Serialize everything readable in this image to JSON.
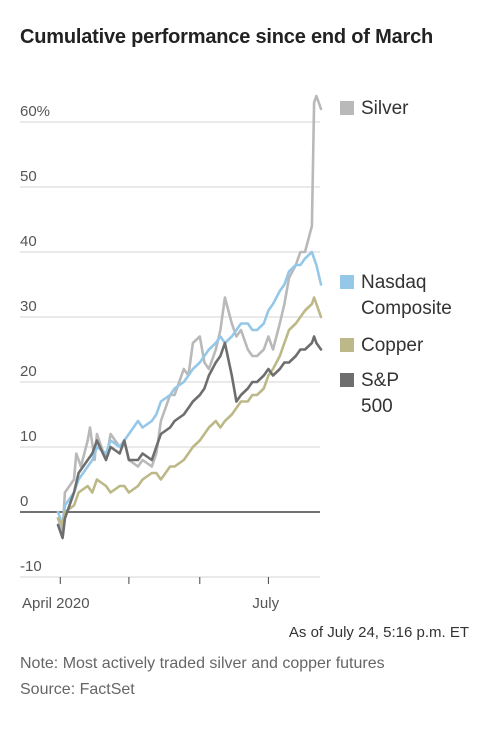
{
  "title": "Cumulative performance since end of March",
  "as_of": "As of July 24, 5:16 p.m. ET",
  "note": "Note: Most actively traded silver and copper futures",
  "source": "Source: FactSet",
  "chart_data": {
    "type": "line",
    "title": "Cumulative performance since end of March",
    "x_start": "2020-03-31",
    "x_end": "2020-07-24",
    "x_tick_labels": [
      "April 2020",
      "July"
    ],
    "y_ticks": [
      "60%",
      "50",
      "40",
      "30",
      "20",
      "10",
      "0",
      "-10"
    ],
    "ylim": [
      -10,
      64
    ],
    "grid": true,
    "legend": "right",
    "series": [
      {
        "name": "Silver",
        "color": "#b9b9b9",
        "label_lines": [
          "Silver"
        ],
        "points": [
          [
            "2020-03-31",
            -1
          ],
          [
            "2020-04-02",
            -3
          ],
          [
            "2020-04-03",
            3
          ],
          [
            "2020-04-07",
            5
          ],
          [
            "2020-04-08",
            9
          ],
          [
            "2020-04-10",
            7
          ],
          [
            "2020-04-13",
            11
          ],
          [
            "2020-04-14",
            13
          ],
          [
            "2020-04-16",
            8
          ],
          [
            "2020-04-17",
            12
          ],
          [
            "2020-04-21",
            8
          ],
          [
            "2020-04-23",
            12
          ],
          [
            "2020-04-27",
            10
          ],
          [
            "2020-04-29",
            11
          ],
          [
            "2020-05-01",
            8
          ],
          [
            "2020-05-05",
            7
          ],
          [
            "2020-05-07",
            8
          ],
          [
            "2020-05-11",
            7
          ],
          [
            "2020-05-13",
            9
          ],
          [
            "2020-05-15",
            14
          ],
          [
            "2020-05-19",
            18
          ],
          [
            "2020-05-21",
            18
          ],
          [
            "2020-05-25",
            22
          ],
          [
            "2020-05-27",
            21
          ],
          [
            "2020-05-29",
            26
          ],
          [
            "2020-06-01",
            27
          ],
          [
            "2020-06-03",
            23
          ],
          [
            "2020-06-05",
            22
          ],
          [
            "2020-06-08",
            25
          ],
          [
            "2020-06-10",
            28
          ],
          [
            "2020-06-12",
            33
          ],
          [
            "2020-06-15",
            29
          ],
          [
            "2020-06-17",
            27
          ],
          [
            "2020-06-19",
            28
          ],
          [
            "2020-06-22",
            25
          ],
          [
            "2020-06-24",
            24
          ],
          [
            "2020-06-26",
            24
          ],
          [
            "2020-06-29",
            25
          ],
          [
            "2020-07-01",
            27
          ],
          [
            "2020-07-03",
            25
          ],
          [
            "2020-07-06",
            29
          ],
          [
            "2020-07-08",
            32
          ],
          [
            "2020-07-10",
            36
          ],
          [
            "2020-07-13",
            38
          ],
          [
            "2020-07-15",
            40
          ],
          [
            "2020-07-17",
            40
          ],
          [
            "2020-07-20",
            44
          ],
          [
            "2020-07-21",
            63
          ],
          [
            "2020-07-22",
            64
          ],
          [
            "2020-07-24",
            62
          ]
        ]
      },
      {
        "name": "Nasdaq Composite",
        "color": "#95c8e8",
        "label_lines": [
          "Nasdaq",
          "Composite"
        ],
        "points": [
          [
            "2020-03-31",
            0
          ],
          [
            "2020-04-02",
            -2
          ],
          [
            "2020-04-03",
            1
          ],
          [
            "2020-04-07",
            3
          ],
          [
            "2020-04-09",
            5
          ],
          [
            "2020-04-13",
            7
          ],
          [
            "2020-04-15",
            8
          ],
          [
            "2020-04-17",
            10
          ],
          [
            "2020-04-21",
            9
          ],
          [
            "2020-04-23",
            11
          ],
          [
            "2020-04-27",
            10
          ],
          [
            "2020-04-29",
            11
          ],
          [
            "2020-05-01",
            12
          ],
          [
            "2020-05-05",
            14
          ],
          [
            "2020-05-07",
            13
          ],
          [
            "2020-05-11",
            14
          ],
          [
            "2020-05-13",
            15
          ],
          [
            "2020-05-15",
            17
          ],
          [
            "2020-05-19",
            18
          ],
          [
            "2020-05-21",
            19
          ],
          [
            "2020-05-25",
            20
          ],
          [
            "2020-05-27",
            21
          ],
          [
            "2020-05-29",
            22
          ],
          [
            "2020-06-01",
            23
          ],
          [
            "2020-06-03",
            24
          ],
          [
            "2020-06-05",
            25
          ],
          [
            "2020-06-08",
            26
          ],
          [
            "2020-06-10",
            27
          ],
          [
            "2020-06-12",
            26
          ],
          [
            "2020-06-15",
            27
          ],
          [
            "2020-06-17",
            28
          ],
          [
            "2020-06-19",
            29
          ],
          [
            "2020-06-22",
            29
          ],
          [
            "2020-06-24",
            28
          ],
          [
            "2020-06-26",
            28
          ],
          [
            "2020-06-29",
            29
          ],
          [
            "2020-07-01",
            31
          ],
          [
            "2020-07-03",
            32
          ],
          [
            "2020-07-06",
            34
          ],
          [
            "2020-07-08",
            35
          ],
          [
            "2020-07-10",
            37
          ],
          [
            "2020-07-13",
            38
          ],
          [
            "2020-07-15",
            38
          ],
          [
            "2020-07-17",
            39
          ],
          [
            "2020-07-20",
            40
          ],
          [
            "2020-07-21",
            39
          ],
          [
            "2020-07-22",
            38
          ],
          [
            "2020-07-24",
            35
          ]
        ]
      },
      {
        "name": "Copper",
        "color": "#bdb887",
        "label_lines": [
          "Copper"
        ],
        "points": [
          [
            "2020-03-31",
            -1
          ],
          [
            "2020-04-02",
            -2
          ],
          [
            "2020-04-03",
            0
          ],
          [
            "2020-04-07",
            1
          ],
          [
            "2020-04-09",
            3
          ],
          [
            "2020-04-13",
            4
          ],
          [
            "2020-04-15",
            3
          ],
          [
            "2020-04-17",
            5
          ],
          [
            "2020-04-21",
            4
          ],
          [
            "2020-04-23",
            3
          ],
          [
            "2020-04-27",
            4
          ],
          [
            "2020-04-29",
            4
          ],
          [
            "2020-05-01",
            3
          ],
          [
            "2020-05-05",
            4
          ],
          [
            "2020-05-07",
            5
          ],
          [
            "2020-05-11",
            6
          ],
          [
            "2020-05-13",
            6
          ],
          [
            "2020-05-15",
            5
          ],
          [
            "2020-05-19",
            7
          ],
          [
            "2020-05-21",
            7
          ],
          [
            "2020-05-25",
            8
          ],
          [
            "2020-05-27",
            9
          ],
          [
            "2020-05-29",
            10
          ],
          [
            "2020-06-01",
            11
          ],
          [
            "2020-06-03",
            12
          ],
          [
            "2020-06-05",
            13
          ],
          [
            "2020-06-08",
            14
          ],
          [
            "2020-06-10",
            13
          ],
          [
            "2020-06-12",
            14
          ],
          [
            "2020-06-15",
            15
          ],
          [
            "2020-06-17",
            16
          ],
          [
            "2020-06-19",
            17
          ],
          [
            "2020-06-22",
            17
          ],
          [
            "2020-06-24",
            18
          ],
          [
            "2020-06-26",
            18
          ],
          [
            "2020-06-29",
            19
          ],
          [
            "2020-07-01",
            21
          ],
          [
            "2020-07-03",
            22
          ],
          [
            "2020-07-06",
            24
          ],
          [
            "2020-07-08",
            26
          ],
          [
            "2020-07-10",
            28
          ],
          [
            "2020-07-13",
            29
          ],
          [
            "2020-07-15",
            30
          ],
          [
            "2020-07-17",
            31
          ],
          [
            "2020-07-20",
            32
          ],
          [
            "2020-07-21",
            33
          ],
          [
            "2020-07-22",
            32
          ],
          [
            "2020-07-24",
            30
          ]
        ]
      },
      {
        "name": "S&P 500",
        "color": "#6e6e6e",
        "label_lines": [
          "S&P",
          "500"
        ],
        "points": [
          [
            "2020-03-31",
            -2
          ],
          [
            "2020-04-02",
            -4
          ],
          [
            "2020-04-03",
            -1
          ],
          [
            "2020-04-07",
            3
          ],
          [
            "2020-04-09",
            6
          ],
          [
            "2020-04-13",
            8
          ],
          [
            "2020-04-15",
            9
          ],
          [
            "2020-04-17",
            11
          ],
          [
            "2020-04-21",
            8
          ],
          [
            "2020-04-23",
            10
          ],
          [
            "2020-04-27",
            9
          ],
          [
            "2020-04-29",
            11
          ],
          [
            "2020-05-01",
            8
          ],
          [
            "2020-05-05",
            8
          ],
          [
            "2020-05-07",
            9
          ],
          [
            "2020-05-11",
            8
          ],
          [
            "2020-05-13",
            10
          ],
          [
            "2020-05-15",
            12
          ],
          [
            "2020-05-19",
            13
          ],
          [
            "2020-05-21",
            14
          ],
          [
            "2020-05-25",
            15
          ],
          [
            "2020-05-27",
            16
          ],
          [
            "2020-05-29",
            17
          ],
          [
            "2020-06-01",
            18
          ],
          [
            "2020-06-03",
            19
          ],
          [
            "2020-06-05",
            21
          ],
          [
            "2020-06-08",
            23
          ],
          [
            "2020-06-10",
            24
          ],
          [
            "2020-06-12",
            26
          ],
          [
            "2020-06-15",
            21
          ],
          [
            "2020-06-17",
            17
          ],
          [
            "2020-06-19",
            18
          ],
          [
            "2020-06-22",
            19
          ],
          [
            "2020-06-24",
            20
          ],
          [
            "2020-06-26",
            20
          ],
          [
            "2020-06-29",
            21
          ],
          [
            "2020-07-01",
            22
          ],
          [
            "2020-07-03",
            21
          ],
          [
            "2020-07-06",
            22
          ],
          [
            "2020-07-08",
            23
          ],
          [
            "2020-07-10",
            23
          ],
          [
            "2020-07-13",
            24
          ],
          [
            "2020-07-15",
            25
          ],
          [
            "2020-07-17",
            25
          ],
          [
            "2020-07-20",
            26
          ],
          [
            "2020-07-21",
            27
          ],
          [
            "2020-07-22",
            26
          ],
          [
            "2020-07-24",
            25
          ]
        ]
      }
    ]
  }
}
